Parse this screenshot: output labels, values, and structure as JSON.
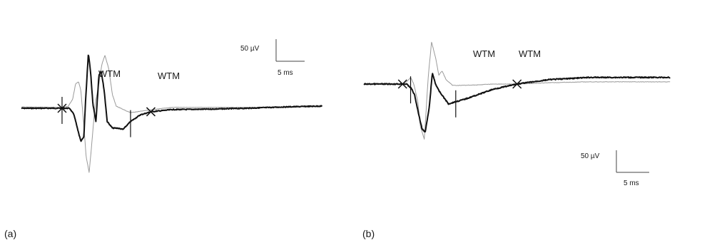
{
  "chart_data": [
    {
      "type": "line",
      "panel_label": "(a)",
      "title": "",
      "xlabel": "",
      "ylabel": "",
      "grid": false,
      "legend": "none",
      "annotations": [
        "WTM",
        "WTM"
      ],
      "scale_bar": {
        "amplitude": "50 µV",
        "time": "5 ms"
      },
      "series": [
        {
          "style": "thick-black",
          "x": [
            0,
            5.4,
            6.4,
            6.6,
            7.0,
            7.5,
            7.9,
            8.3,
            8.5,
            8.9,
            9.2,
            9.5,
            9.9,
            10.3,
            10.6,
            11.0,
            11.4,
            12.1,
            12.8,
            13.5,
            14.5,
            15.8,
            17.2,
            20,
            25,
            30,
            35,
            40
          ],
          "y": [
            0,
            0,
            0,
            -5,
            -15,
            -50,
            -75,
            -65,
            10,
            125,
            80,
            10,
            -30,
            75,
            85,
            40,
            -30,
            -45,
            -45,
            -48,
            -30,
            -15,
            -8,
            -3,
            -2,
            0,
            3,
            5
          ]
        },
        {
          "style": "thin-grey",
          "x": [
            0,
            5.4,
            6.2,
            6.8,
            7.2,
            7.6,
            7.9,
            8.3,
            8.6,
            9.0,
            9.3,
            9.8,
            10.3,
            10.7,
            11.1,
            11.6,
            12.1,
            12.6,
            13.2,
            13.8,
            14.5,
            16.5,
            20,
            25,
            30,
            35,
            40
          ],
          "y": [
            3,
            2,
            4,
            20,
            55,
            60,
            40,
            -40,
            -110,
            -145,
            -90,
            10,
            55,
            100,
            120,
            90,
            30,
            5,
            0,
            -5,
            -10,
            -5,
            2,
            2,
            2,
            3,
            4
          ]
        }
      ],
      "markers": {
        "cross_x": [
          5.4,
          17.2
        ],
        "tick_x": [
          5.4,
          14.5
        ]
      }
    },
    {
      "type": "line",
      "panel_label": "(b)",
      "title": "",
      "xlabel": "",
      "ylabel": "",
      "grid": false,
      "legend": "none",
      "annotations": [
        "WTM",
        "WTM"
      ],
      "scale_bar": {
        "amplitude": "50 µV",
        "time": "5 ms"
      },
      "series": [
        {
          "style": "thick-black",
          "x": [
            0,
            4.8,
            5.3,
            5.9,
            6.3,
            6.7,
            7.2,
            7.6,
            8.1,
            8.5,
            8.9,
            9.3,
            9.9,
            10.5,
            11.4,
            12.4,
            14,
            16,
            19,
            23,
            28,
            33,
            38
          ],
          "y": [
            0,
            0,
            0,
            -10,
            -25,
            -60,
            -100,
            -110,
            -55,
            25,
            0,
            -15,
            -30,
            -45,
            -40,
            -35,
            -25,
            -12,
            0,
            10,
            15,
            15,
            15
          ]
        },
        {
          "style": "thin-grey",
          "x": [
            0,
            4.8,
            5.3,
            5.8,
            6.2,
            6.7,
            7.0,
            7.5,
            8.0,
            8.4,
            8.9,
            9.3,
            9.7,
            10.2,
            11,
            12,
            14,
            16,
            19,
            23,
            28,
            33,
            38
          ],
          "y": [
            0,
            0,
            5,
            15,
            0,
            -40,
            -95,
            -125,
            20,
            95,
            60,
            20,
            30,
            10,
            -3,
            -3,
            -2,
            0,
            0,
            3,
            5,
            5,
            5
          ]
        }
      ],
      "markers": {
        "cross_x": [
          4.8,
          19
        ],
        "tick_x": [
          5.8,
          11.4
        ]
      }
    }
  ]
}
